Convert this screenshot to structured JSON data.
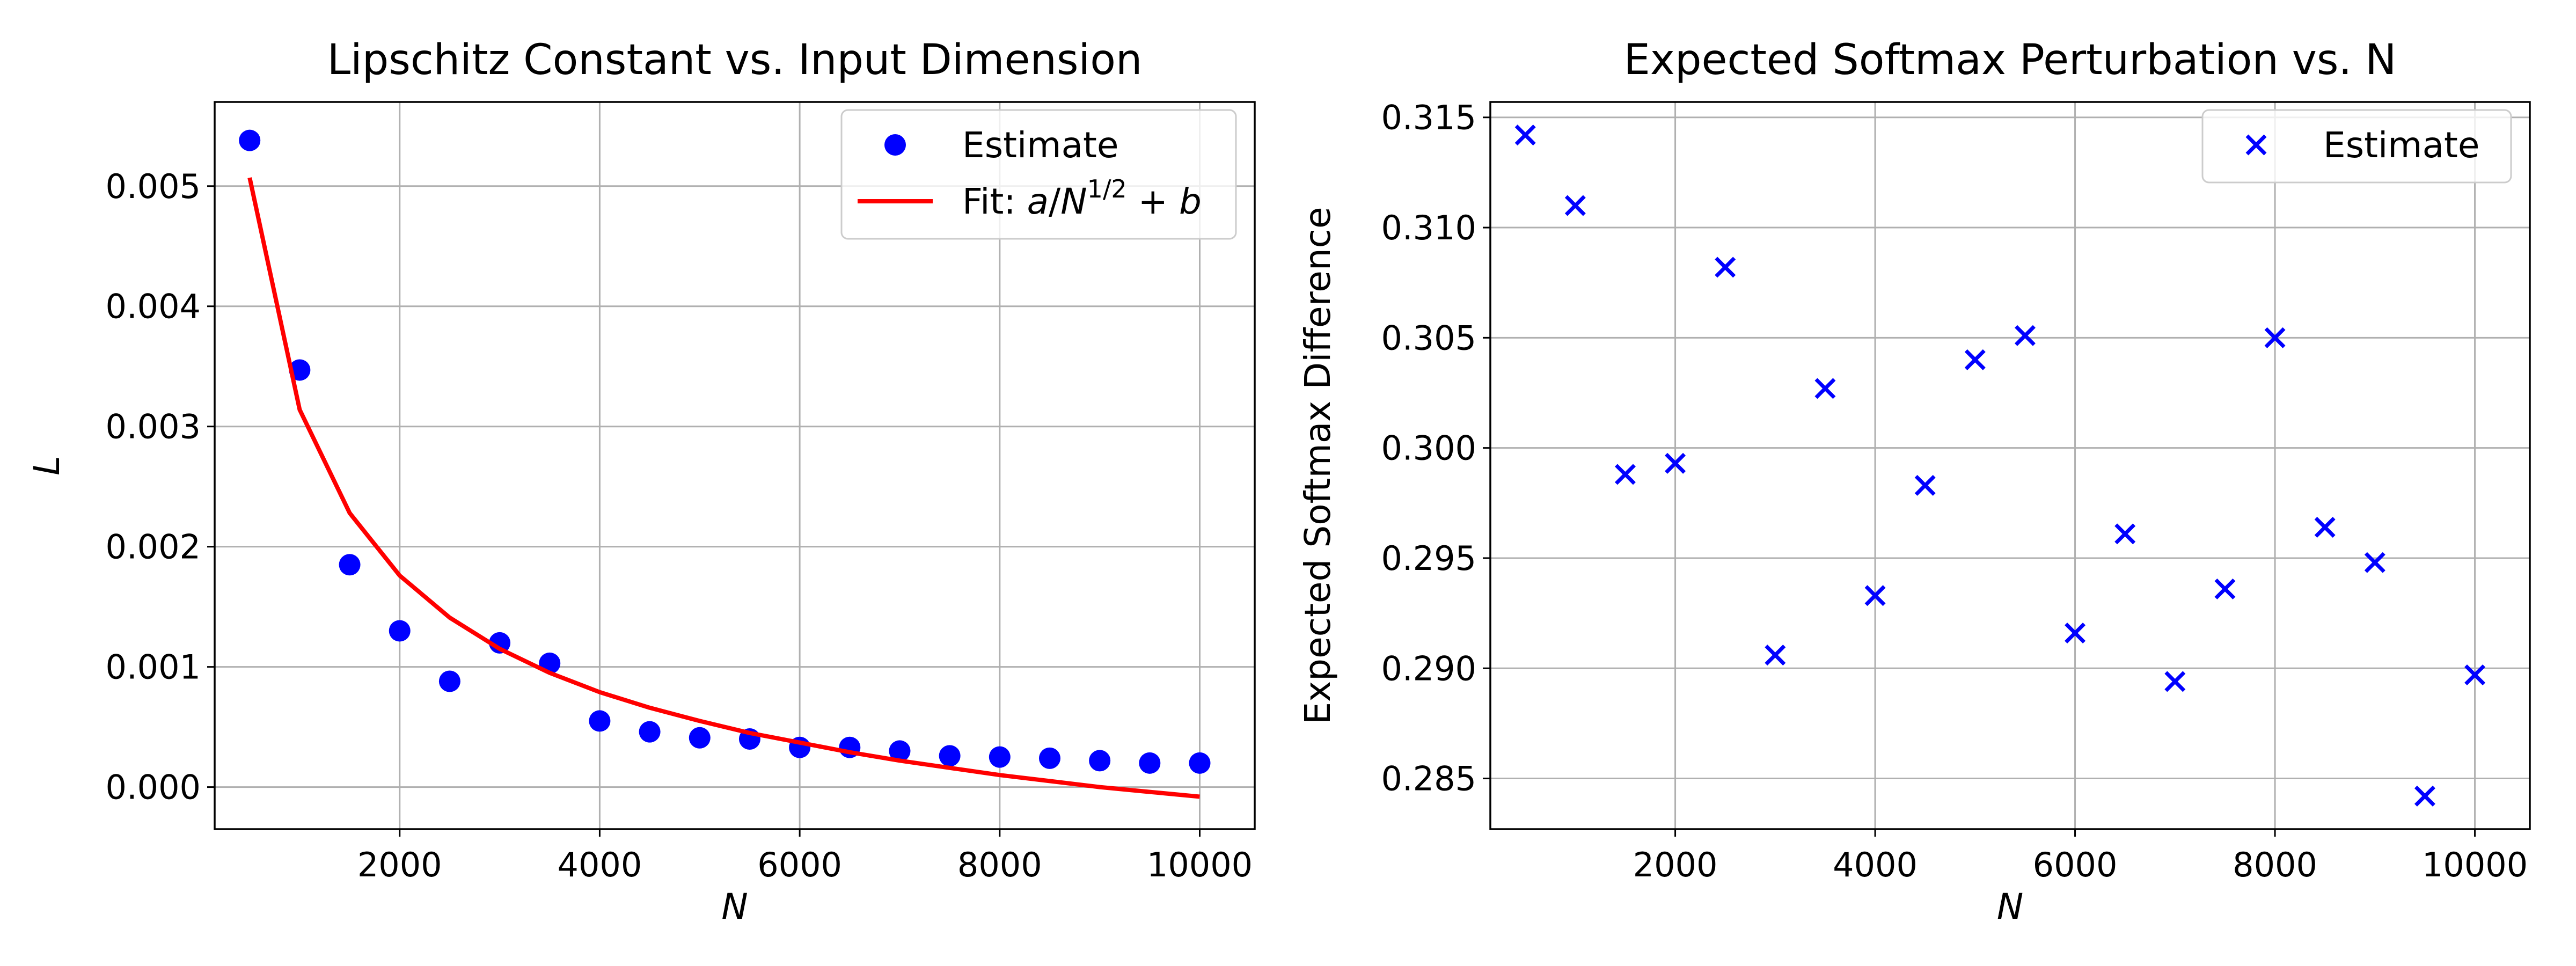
{
  "chart_data": [
    {
      "type": "scatter",
      "title": "Lipschitz Constant vs. Input Dimension",
      "xlabel": "N",
      "ylabel": "L",
      "xlim": [
        150,
        10550
      ],
      "ylim": [
        -0.00035,
        0.0057
      ],
      "grid": true,
      "legend_position": "top-right",
      "x_ticks": [
        2000,
        4000,
        6000,
        8000,
        10000
      ],
      "x_tick_labels": [
        "2000",
        "4000",
        "6000",
        "8000",
        "10000"
      ],
      "y_ticks": [
        0.0,
        0.001,
        0.002,
        0.003,
        0.004,
        0.005
      ],
      "y_tick_labels": [
        "0.000",
        "0.001",
        "0.002",
        "0.003",
        "0.004",
        "0.005"
      ],
      "series": [
        {
          "name": "Estimate",
          "kind": "scatter",
          "marker": "circle",
          "color": "#0000ff",
          "x": [
            500,
            1000,
            1500,
            2000,
            2500,
            3000,
            3500,
            4000,
            4500,
            5000,
            5500,
            6000,
            6500,
            7000,
            7500,
            8000,
            8500,
            9000,
            9500,
            10000
          ],
          "y": [
            0.00538,
            0.00347,
            0.00185,
            0.0013,
            0.00088,
            0.0012,
            0.00103,
            0.00055,
            0.00046,
            0.00041,
            0.0004,
            0.00033,
            0.00033,
            0.0003,
            0.00026,
            0.00025,
            0.00024,
            0.00022,
            0.0002,
            0.0002
          ]
        },
        {
          "name": "Fit: a/N^{1/2} + b",
          "legend_label": {
            "prefix": "Fit: ",
            "a": "a",
            "slash": "/",
            "N": "N",
            "exp": "1/2",
            "plus": " + ",
            "b": "b"
          },
          "kind": "line",
          "color": "#ff0000",
          "x": [
            500,
            1000,
            1500,
            2000,
            2500,
            3000,
            3500,
            4000,
            4500,
            5000,
            5500,
            6000,
            6500,
            7000,
            7500,
            8000,
            8500,
            9000,
            9500,
            10000
          ],
          "y": [
            0.00507,
            0.00314,
            0.00228,
            0.00176,
            0.00141,
            0.00115,
            0.00095,
            0.00079,
            0.00066,
            0.00055,
            0.00045,
            0.00037,
            0.00029,
            0.00022,
            0.00016,
            0.0001,
            5e-05,
            0.0,
            -4e-05,
            -8e-05
          ]
        }
      ]
    },
    {
      "type": "scatter",
      "title": "Expected Softmax Perturbation vs. N",
      "xlabel": "N",
      "ylabel": "Expected Softmax Difference",
      "xlim": [
        150,
        10550
      ],
      "ylim": [
        0.2827,
        0.3157
      ],
      "grid": true,
      "legend_position": "top-right",
      "x_ticks": [
        2000,
        4000,
        6000,
        8000,
        10000
      ],
      "x_tick_labels": [
        "2000",
        "4000",
        "6000",
        "8000",
        "10000"
      ],
      "y_ticks": [
        0.285,
        0.29,
        0.295,
        0.3,
        0.305,
        0.31,
        0.315
      ],
      "y_tick_labels": [
        "0.285",
        "0.290",
        "0.295",
        "0.300",
        "0.305",
        "0.310",
        "0.315"
      ],
      "series": [
        {
          "name": "Estimate",
          "kind": "scatter",
          "marker": "x",
          "color": "#0000ff",
          "x": [
            500,
            1000,
            1500,
            2000,
            2500,
            3000,
            3500,
            4000,
            4500,
            5000,
            5500,
            6000,
            6500,
            7000,
            7500,
            8000,
            8500,
            9000,
            9500,
            10000
          ],
          "y": [
            0.3142,
            0.311,
            0.2988,
            0.2993,
            0.3082,
            0.2906,
            0.3027,
            0.2933,
            0.2983,
            0.304,
            0.3051,
            0.2916,
            0.2961,
            0.2894,
            0.2936,
            0.305,
            0.2964,
            0.2948,
            0.2842,
            0.2897
          ]
        }
      ]
    }
  ]
}
